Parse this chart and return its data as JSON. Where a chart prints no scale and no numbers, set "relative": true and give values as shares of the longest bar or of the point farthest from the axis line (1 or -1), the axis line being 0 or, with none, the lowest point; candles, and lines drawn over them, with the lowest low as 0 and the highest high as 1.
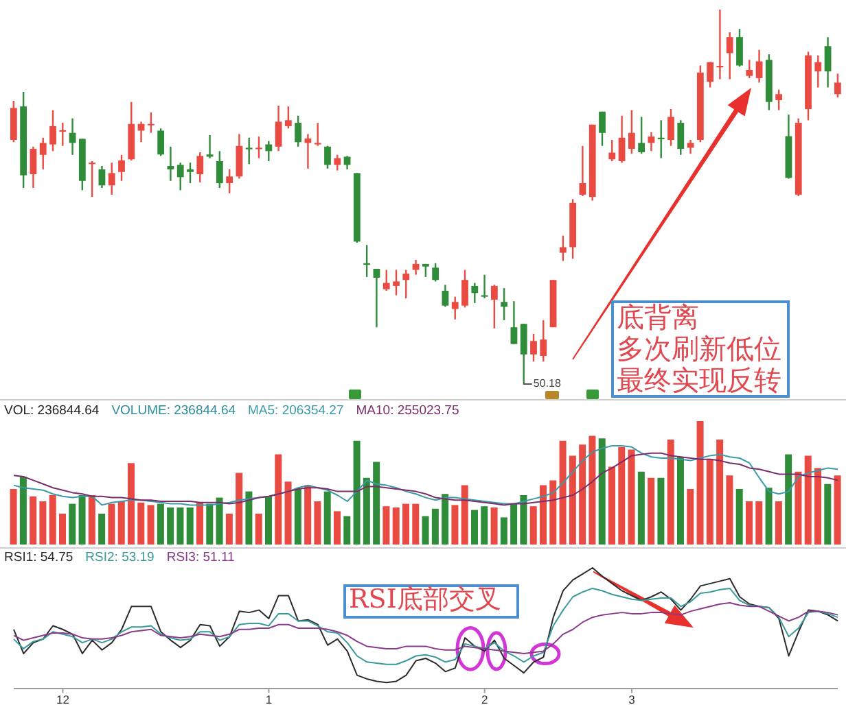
{
  "chart_data": [
    {
      "type": "candlestick",
      "relative": true,
      "tick_labels": false,
      "categories": [
        null,
        null,
        null,
        null,
        null,
        "12",
        null,
        null,
        null,
        null,
        null,
        null,
        null,
        null,
        null,
        null,
        null,
        null,
        null,
        null,
        null,
        null,
        null,
        null,
        null,
        null,
        "1",
        null,
        null,
        null,
        null,
        null,
        null,
        null,
        null,
        null,
        null,
        null,
        null,
        null,
        null,
        null,
        null,
        null,
        null,
        null,
        null,
        null,
        "2",
        null,
        null,
        null,
        null,
        null,
        null,
        null,
        null,
        null,
        null,
        null,
        null,
        null,
        null,
        "3",
        null,
        null,
        null,
        null,
        null,
        null,
        null,
        null,
        null,
        null,
        null,
        null,
        null,
        null,
        null,
        null,
        null,
        null,
        null,
        null,
        null
      ],
      "ohlc": [
        [
          0.65,
          0.755,
          0.644,
          0.736
        ],
        [
          0.74,
          0.779,
          0.521,
          0.555
        ],
        [
          0.558,
          0.632,
          0.521,
          0.626
        ],
        [
          0.61,
          0.656,
          0.571,
          0.642
        ],
        [
          0.638,
          0.73,
          0.62,
          0.687
        ],
        [
          0.672,
          0.696,
          0.634,
          0.676
        ],
        [
          0.669,
          0.708,
          0.61,
          0.642
        ],
        [
          0.653,
          0.653,
          0.515,
          0.54
        ],
        [
          0.585,
          0.593,
          0.497,
          0.589
        ],
        [
          0.571,
          0.58,
          0.521,
          0.528
        ],
        [
          0.528,
          0.589,
          0.503,
          0.561
        ],
        [
          0.564,
          0.61,
          0.54,
          0.595
        ],
        [
          0.598,
          0.752,
          0.595,
          0.693
        ],
        [
          0.675,
          0.699,
          0.644,
          0.693
        ],
        [
          0.691,
          0.724,
          0.669,
          0.693
        ],
        [
          0.675,
          0.681,
          0.607,
          0.611
        ],
        [
          0.58,
          0.632,
          0.54,
          0.571
        ],
        [
          0.583,
          0.589,
          0.515,
          0.55
        ],
        [
          0.571,
          0.589,
          0.534,
          0.564
        ],
        [
          0.558,
          0.617,
          0.536,
          0.607
        ],
        [
          0.611,
          0.663,
          0.601,
          0.605
        ],
        [
          0.593,
          0.62,
          0.521,
          0.534
        ],
        [
          0.534,
          0.571,
          0.507,
          0.552
        ],
        [
          0.552,
          0.666,
          0.546,
          0.634
        ],
        [
          0.629,
          0.656,
          0.585,
          0.625
        ],
        [
          0.626,
          0.659,
          0.601,
          0.629
        ],
        [
          0.638,
          0.647,
          0.593,
          0.62
        ],
        [
          0.632,
          0.742,
          0.62,
          0.699
        ],
        [
          0.687,
          0.74,
          0.681,
          0.703
        ],
        [
          0.696,
          0.715,
          0.632,
          0.644
        ],
        [
          0.642,
          0.666,
          0.573,
          0.654
        ],
        [
          0.638,
          0.696,
          0.634,
          0.642
        ],
        [
          0.632,
          0.634,
          0.573,
          0.583
        ],
        [
          0.583,
          0.61,
          0.568,
          0.601
        ],
        [
          0.605,
          0.607,
          0.571,
          0.583
        ],
        [
          0.561,
          0.561,
          0.374,
          0.377
        ],
        [
          0.319,
          0.368,
          0.282,
          0.315
        ],
        [
          0.304,
          0.304,
          0.147,
          0.28
        ],
        [
          0.249,
          0.301,
          0.245,
          0.266
        ],
        [
          0.258,
          0.301,
          0.233,
          0.27
        ],
        [
          0.274,
          0.301,
          0.225,
          0.291
        ],
        [
          0.301,
          0.328,
          0.288,
          0.317
        ],
        [
          0.317,
          0.317,
          0.282,
          0.31
        ],
        [
          0.307,
          0.319,
          0.27,
          0.274
        ],
        [
          0.245,
          0.261,
          0.202,
          0.205
        ],
        [
          0.196,
          0.229,
          0.168,
          0.215
        ],
        [
          0.205,
          0.301,
          0.2,
          0.274
        ],
        [
          0.258,
          0.266,
          0.212,
          0.239
        ],
        [
          0.233,
          0.288,
          0.225,
          0.229
        ],
        [
          0.221,
          0.261,
          0.144,
          0.258
        ],
        [
          0.215,
          0.252,
          0.166,
          0.202
        ],
        [
          0.147,
          0.217,
          0.102,
          0.102
        ],
        [
          0.156,
          0.156,
          0,
          0.074
        ],
        [
          0.074,
          0.129,
          0.055,
          0.11
        ],
        [
          0.07,
          0.166,
          0.055,
          0.114
        ],
        [
          0.147,
          0.274,
          0.147,
          0.274
        ],
        [
          0.347,
          0.393,
          0.325,
          0.362
        ],
        [
          0.362,
          0.491,
          0.331,
          0.481
        ],
        [
          0.503,
          0.634,
          0.499,
          0.534
        ],
        [
          0.497,
          0.691,
          0.487,
          0.691
        ],
        [
          0.726,
          0.726,
          0.634,
          0.669
        ],
        [
          0.598,
          0.65,
          0.593,
          0.616
        ],
        [
          0.593,
          0.715,
          0.589,
          0.656
        ],
        [
          0.626,
          0.73,
          0.613,
          0.669
        ],
        [
          0.642,
          0.712,
          0.613,
          0.617
        ],
        [
          0.642,
          0.671,
          0.62,
          0.659
        ],
        [
          0.656,
          0.703,
          0.601,
          0.652
        ],
        [
          0.65,
          0.733,
          0.634,
          0.712
        ],
        [
          0.696,
          0.703,
          0.61,
          0.626
        ],
        [
          0.629,
          0.65,
          0.613,
          0.642
        ],
        [
          0.65,
          0.85,
          0.644,
          0.831
        ],
        [
          0.806,
          0.859,
          0.791,
          0.859
        ],
        [
          0.845,
          1,
          0.813,
          0.849
        ],
        [
          0.883,
          0.939,
          0.813,
          0.926
        ],
        [
          0.926,
          0.948,
          0.847,
          0.85
        ],
        [
          0.822,
          0.865,
          0.816,
          0.838
        ],
        [
          0.816,
          0.892,
          0.804,
          0.861
        ],
        [
          0.865,
          0.88,
          0.73,
          0.752
        ],
        [
          0.757,
          0.785,
          0.73,
          0.773
        ],
        [
          0.66,
          0.718,
          0.546,
          0.548
        ],
        [
          0.503,
          0.708,
          0.499,
          0.696
        ],
        [
          0.733,
          0.887,
          0.703,
          0.877
        ],
        [
          0.834,
          0.877,
          0.791,
          0.859
        ],
        [
          0.902,
          0.926,
          0.791,
          0.834
        ],
        [
          0.773,
          0.828,
          0.764,
          0.804
        ]
      ],
      "colors": [
        "#e94b43",
        "#2f8c38",
        "#e94b43",
        "#e94b43",
        "#e94b43",
        "#e94b43",
        "#2f8c38",
        "#2f8c38",
        "#e94b43",
        "#2f8c38",
        "#e94b43",
        "#e94b43",
        "#e94b43",
        "#e94b43",
        "#e94b43",
        "#2f8c38",
        "#2f8c38",
        "#2f8c38",
        "#2f8c38",
        "#e94b43",
        "#2f8c38",
        "#2f8c38",
        "#e94b43",
        "#e94b43",
        "#2f8c38",
        "#e94b43",
        "#2f8c38",
        "#e94b43",
        "#e94b43",
        "#2f8c38",
        "#e94b43",
        "#e94b43",
        "#2f8c38",
        "#e94b43",
        "#2f8c38",
        "#2f8c38",
        "#2f8c38",
        "#2f8c38",
        "#e94b43",
        "#e94b43",
        "#e94b43",
        "#e94b43",
        "#2f8c38",
        "#2f8c38",
        "#2f8c38",
        "#e94b43",
        "#e94b43",
        "#2f8c38",
        "#2f8c38",
        "#e94b43",
        "#2f8c38",
        "#2f8c38",
        "#2f8c38",
        "#e94b43",
        "#e94b43",
        "#e94b43",
        "#e94b43",
        "#e94b43",
        "#e94b43",
        "#e94b43",
        "#2f8c38",
        "#e94b43",
        "#e94b43",
        "#e94b43",
        "#2f8c38",
        "#e94b43",
        "#2f8c38",
        "#e94b43",
        "#2f8c38",
        "#e94b43",
        "#e94b43",
        "#e94b43",
        "#e94b43",
        "#e94b43",
        "#2f8c38",
        "#e94b43",
        "#e94b43",
        "#2f8c38",
        "#e94b43",
        "#2f8c38",
        "#e94b43",
        "#e94b43",
        "#e94b43",
        "#2f8c38",
        "#e94b43"
      ],
      "annotations": [
        "50.18",
        "底背离",
        "多次刷新低位",
        "最终实现反转"
      ]
    },
    {
      "type": "bar",
      "relative": true,
      "tick_labels": false,
      "legend": "top left",
      "marker": "none",
      "categories": [
        null,
        null,
        null,
        null,
        null,
        "12",
        null,
        null,
        null,
        null,
        null,
        null,
        null,
        null,
        null,
        null,
        null,
        null,
        null,
        null,
        null,
        null,
        null,
        null,
        null,
        null,
        "1",
        null,
        null,
        null,
        null,
        null,
        null,
        null,
        null,
        null,
        null,
        null,
        null,
        null,
        null,
        null,
        null,
        null,
        null,
        null,
        null,
        null,
        "2",
        null,
        null,
        null,
        null,
        null,
        null,
        null,
        null,
        null,
        null,
        null,
        null,
        null,
        null,
        "3",
        null,
        null,
        null,
        null,
        null,
        null,
        null,
        null,
        null,
        null,
        null,
        null,
        null,
        null,
        null,
        null,
        null,
        null,
        null,
        null,
        null
      ],
      "annotations": [
        "VOL: 236844.64",
        "VOLUME: 236844.64"
      ],
      "series": [
        {
          "type": "bar",
          "values": [
            0.45,
            0.55,
            0.39,
            0.35,
            0.4,
            0.25,
            0.33,
            0.4,
            0.4,
            0.25,
            0.33,
            0.35,
            0.66,
            0.34,
            0.32,
            0.33,
            0.3,
            0.3,
            0.3,
            0.34,
            0.33,
            0.38,
            0.25,
            0.58,
            0.43,
            0.25,
            0.39,
            0.73,
            0.51,
            0.45,
            0.48,
            0.35,
            0.43,
            0.27,
            0.23,
            0.84,
            0.54,
            0.67,
            0.31,
            0.3,
            0.33,
            0.33,
            0.23,
            0.29,
            0.41,
            0.32,
            0.48,
            0.28,
            0.31,
            0.3,
            0.22,
            0.33,
            0.4,
            0.31,
            0.48,
            0.52,
            0.84,
            0.72,
            0.81,
            0.88,
            0.86,
            0.63,
            0.79,
            0.77,
            0.59,
            0.54,
            0.54,
            0.85,
            0.71,
            0.45,
            1,
            0.69,
            0.85,
            0.56,
            0.45,
            0.35,
            0.35,
            0.46,
            0.35,
            0.73,
            0.59,
            0.72,
            0.62,
            0.49,
            0.56
          ],
          "colors": [
            "#e94b43",
            "#2f8c38",
            "#e94b43",
            "#e94b43",
            "#e94b43",
            "#e94b43",
            "#2f8c38",
            "#2f8c38",
            "#e94b43",
            "#2f8c38",
            "#e94b43",
            "#e94b43",
            "#e94b43",
            "#e94b43",
            "#e94b43",
            "#2f8c38",
            "#2f8c38",
            "#2f8c38",
            "#2f8c38",
            "#e94b43",
            "#2f8c38",
            "#2f8c38",
            "#e94b43",
            "#e94b43",
            "#2f8c38",
            "#e94b43",
            "#2f8c38",
            "#e94b43",
            "#e94b43",
            "#2f8c38",
            "#e94b43",
            "#e94b43",
            "#2f8c38",
            "#e94b43",
            "#2f8c38",
            "#2f8c38",
            "#2f8c38",
            "#2f8c38",
            "#e94b43",
            "#e94b43",
            "#e94b43",
            "#e94b43",
            "#2f8c38",
            "#2f8c38",
            "#2f8c38",
            "#e94b43",
            "#e94b43",
            "#2f8c38",
            "#2f8c38",
            "#e94b43",
            "#2f8c38",
            "#2f8c38",
            "#2f8c38",
            "#e94b43",
            "#e94b43",
            "#e94b43",
            "#e94b43",
            "#e94b43",
            "#e94b43",
            "#e94b43",
            "#2f8c38",
            "#e94b43",
            "#e94b43",
            "#e94b43",
            "#2f8c38",
            "#e94b43",
            "#2f8c38",
            "#e94b43",
            "#2f8c38",
            "#e94b43",
            "#e94b43",
            "#e94b43",
            "#e94b43",
            "#e94b43",
            "#2f8c38",
            "#e94b43",
            "#e94b43",
            "#2f8c38",
            "#e94b43",
            "#2f8c38",
            "#e94b43",
            "#e94b43",
            "#e94b43",
            "#2f8c38",
            "#e94b43"
          ]
        },
        {
          "type": "line",
          "name": "MA5: 206354.27",
          "color": "#3a9aa8",
          "values": [
            0.48,
            0.46,
            0.45,
            0.44,
            0.41,
            0.39,
            0.38,
            0.39,
            0.39,
            0.32,
            0.34,
            0.35,
            0.36,
            0.36,
            0.35,
            0.34,
            0.33,
            0.33,
            0.32,
            0.32,
            0.32,
            0.33,
            0.34,
            0.36,
            0.37,
            0.38,
            0.39,
            0.41,
            0.43,
            0.46,
            0.48,
            0.46,
            0.44,
            0.4,
            0.35,
            0.43,
            0.52,
            0.49,
            0.48,
            0.46,
            0.43,
            0.41,
            0.38,
            0.36,
            0.38,
            0.38,
            0.37,
            0.36,
            0.35,
            0.34,
            0.33,
            0.33,
            0.35,
            0.37,
            0.39,
            0.42,
            0.5,
            0.59,
            0.68,
            0.75,
            0.78,
            0.8,
            0.8,
            0.79,
            0.74,
            0.71,
            0.7,
            0.7,
            0.69,
            0.68,
            0.7,
            0.72,
            0.73,
            0.71,
            0.7,
            0.66,
            0.54,
            0.43,
            0.41,
            0.43,
            0.55,
            0.58,
            0.6,
            0.62,
            0.61
          ]
        },
        {
          "type": "line",
          "name": "MA10: 255023.75",
          "color": "#7b2d6b",
          "values": [
            0.56,
            0.55,
            0.52,
            0.49,
            0.46,
            0.44,
            0.42,
            0.41,
            0.39,
            0.39,
            0.38,
            0.38,
            0.37,
            0.36,
            0.36,
            0.35,
            0.35,
            0.35,
            0.35,
            0.34,
            0.34,
            0.34,
            0.33,
            0.34,
            0.36,
            0.38,
            0.39,
            0.41,
            0.43,
            0.45,
            0.46,
            0.46,
            0.45,
            0.43,
            0.43,
            0.43,
            0.47,
            0.47,
            0.46,
            0.45,
            0.44,
            0.43,
            0.41,
            0.38,
            0.37,
            0.36,
            0.36,
            0.35,
            0.34,
            0.33,
            0.32,
            0.33,
            0.33,
            0.34,
            0.35,
            0.36,
            0.38,
            0.4,
            0.45,
            0.51,
            0.58,
            0.62,
            0.67,
            0.72,
            0.73,
            0.74,
            0.74,
            0.72,
            0.71,
            0.7,
            0.69,
            0.69,
            0.68,
            0.66,
            0.65,
            0.62,
            0.61,
            0.59,
            0.57,
            0.57,
            0.57,
            0.55,
            0.55,
            0.54,
            0.52
          ]
        }
      ]
    },
    {
      "type": "line",
      "relative": true,
      "tick_labels": "x",
      "legend": "top left",
      "marker": "none",
      "categories": [
        null,
        null,
        null,
        null,
        null,
        "12",
        null,
        null,
        null,
        null,
        null,
        null,
        null,
        null,
        null,
        null,
        null,
        null,
        null,
        null,
        null,
        null,
        null,
        null,
        null,
        null,
        "1",
        null,
        null,
        null,
        null,
        null,
        null,
        null,
        null,
        null,
        null,
        null,
        null,
        null,
        null,
        null,
        null,
        null,
        null,
        null,
        null,
        null,
        "2",
        null,
        null,
        null,
        null,
        null,
        null,
        null,
        null,
        null,
        null,
        null,
        null,
        null,
        null,
        "3",
        null,
        null,
        null,
        null,
        null,
        null,
        null,
        null,
        null,
        null,
        null,
        null,
        null,
        null,
        null,
        null,
        null,
        null,
        null,
        null,
        null
      ],
      "annotations": [
        "RSI底部交叉"
      ],
      "series": [
        {
          "name": "RSI1: 54.75",
          "color": "#2b2b2b",
          "values": [
            0.49,
            0.29,
            0.38,
            0.41,
            0.52,
            0.49,
            0.45,
            0.29,
            0.4,
            0.32,
            0.38,
            0.49,
            0.68,
            0.68,
            0.68,
            0.47,
            0.4,
            0.34,
            0.4,
            0.53,
            0.52,
            0.35,
            0.43,
            0.64,
            0.63,
            0.65,
            0.58,
            0.77,
            0.77,
            0.56,
            0.57,
            0.53,
            0.36,
            0.41,
            0.31,
            0.11,
            0.08,
            0.06,
            0.05,
            0.06,
            0.11,
            0.23,
            0.25,
            0.21,
            0.14,
            0.17,
            0.42,
            0.35,
            0.31,
            0.4,
            0.25,
            0.19,
            0.13,
            0.22,
            0.26,
            0.59,
            0.81,
            0.9,
            0.95,
            1,
            0.93,
            0.87,
            0.81,
            0.77,
            0.73,
            0.76,
            0.8,
            0.74,
            0.65,
            0.74,
            0.85,
            0.87,
            0.89,
            0.91,
            0.76,
            0.7,
            0.68,
            0.67,
            0.58,
            0.27,
            0.47,
            0.65,
            0.64,
            0.61,
            0.56
          ]
        },
        {
          "name": "RSI2: 53.19",
          "color": "#3a9a9a",
          "values": [
            0.41,
            0.33,
            0.39,
            0.41,
            0.47,
            0.45,
            0.43,
            0.38,
            0.41,
            0.38,
            0.41,
            0.47,
            0.51,
            0.51,
            0.52,
            0.45,
            0.42,
            0.4,
            0.41,
            0.47,
            0.47,
            0.4,
            0.43,
            0.53,
            0.54,
            0.54,
            0.52,
            0.62,
            0.62,
            0.56,
            0.56,
            0.52,
            0.47,
            0.46,
            0.38,
            0.27,
            0.22,
            0.21,
            0.2,
            0.2,
            0.23,
            0.27,
            0.28,
            0.26,
            0.22,
            0.24,
            0.37,
            0.35,
            0.33,
            0.38,
            0.31,
            0.27,
            0.22,
            0.27,
            0.3,
            0.52,
            0.65,
            0.76,
            0.8,
            0.83,
            0.81,
            0.78,
            0.76,
            0.74,
            0.73,
            0.74,
            0.75,
            0.75,
            0.68,
            0.72,
            0.79,
            0.8,
            0.82,
            0.83,
            0.73,
            0.69,
            0.68,
            0.67,
            0.59,
            0.43,
            0.5,
            0.63,
            0.64,
            0.62,
            0.59
          ]
        },
        {
          "name": "RSI3: 51.11",
          "color": "#8a3a8a",
          "values": [
            0.44,
            0.4,
            0.42,
            0.44,
            0.46,
            0.46,
            0.45,
            0.42,
            0.41,
            0.41,
            0.42,
            0.44,
            0.47,
            0.48,
            0.49,
            0.44,
            0.43,
            0.42,
            0.43,
            0.45,
            0.44,
            0.43,
            0.45,
            0.49,
            0.49,
            0.5,
            0.5,
            0.53,
            0.53,
            0.5,
            0.5,
            0.5,
            0.49,
            0.47,
            0.44,
            0.39,
            0.35,
            0.34,
            0.33,
            0.33,
            0.35,
            0.35,
            0.35,
            0.33,
            0.32,
            0.32,
            0.35,
            0.34,
            0.33,
            0.32,
            0.31,
            0.3,
            0.29,
            0.3,
            0.31,
            0.37,
            0.45,
            0.49,
            0.55,
            0.59,
            0.61,
            0.62,
            0.63,
            0.62,
            0.62,
            0.63,
            0.63,
            0.62,
            0.61,
            0.64,
            0.66,
            0.68,
            0.7,
            0.71,
            0.69,
            0.68,
            0.68,
            0.64,
            0.6,
            0.56,
            0.59,
            0.64,
            0.64,
            0.63,
            0.61
          ]
        }
      ]
    }
  ]
}
